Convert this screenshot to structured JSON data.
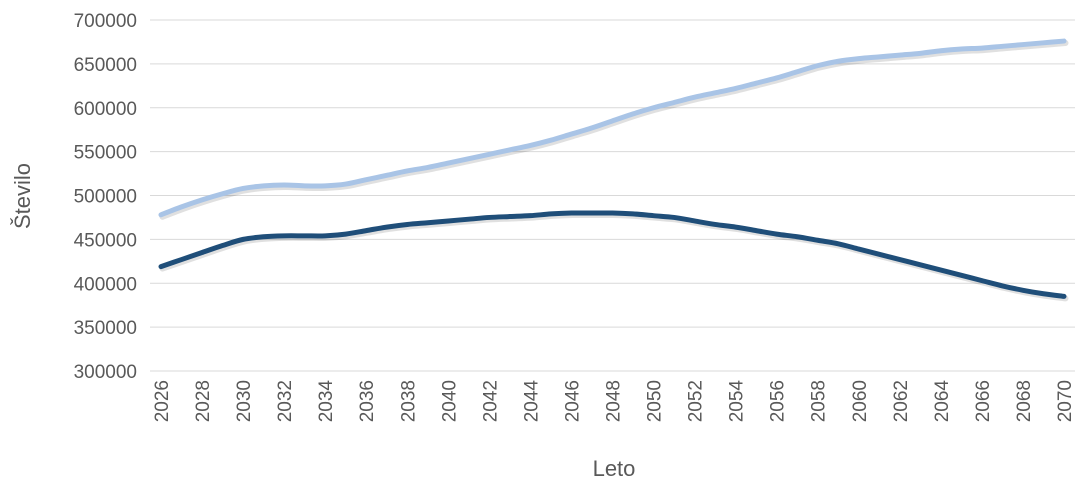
{
  "chart_data": {
    "type": "line",
    "title": "",
    "xlabel": "Leto",
    "ylabel": "Število",
    "x": [
      2026,
      2027,
      2028,
      2029,
      2030,
      2031,
      2032,
      2033,
      2034,
      2035,
      2036,
      2037,
      2038,
      2039,
      2040,
      2041,
      2042,
      2043,
      2044,
      2045,
      2046,
      2047,
      2048,
      2049,
      2050,
      2051,
      2052,
      2053,
      2054,
      2055,
      2056,
      2057,
      2058,
      2059,
      2060,
      2061,
      2062,
      2063,
      2064,
      2065,
      2066,
      2067,
      2068,
      2069,
      2070
    ],
    "x_tick_labels": [
      "2026",
      "2028",
      "2030",
      "2032",
      "2034",
      "2036",
      "2038",
      "2040",
      "2042",
      "2044",
      "2046",
      "2048",
      "2050",
      "2052",
      "2054",
      "2056",
      "2058",
      "2060",
      "2062",
      "2064",
      "2066",
      "2068",
      "2070"
    ],
    "y_tick_labels": [
      "300000",
      "350000",
      "400000",
      "450000",
      "500000",
      "550000",
      "600000",
      "650000",
      "700000"
    ],
    "ylim": [
      300000,
      700000
    ],
    "grid": true,
    "legend": "none",
    "series": [
      {
        "color": "#a9c4e6",
        "values": [
          478000,
          487000,
          495000,
          502000,
          508000,
          511000,
          512000,
          511000,
          511000,
          513000,
          518000,
          523000,
          528000,
          532000,
          537000,
          542000,
          547000,
          552000,
          557000,
          563000,
          570000,
          577000,
          585000,
          593000,
          600000,
          606000,
          612000,
          617000,
          622000,
          628000,
          634000,
          641000,
          648000,
          653000,
          656000,
          658000,
          660000,
          662000,
          665000,
          667000,
          668000,
          670000,
          672000,
          674000,
          676000
        ]
      },
      {
        "color": "#1f4e79",
        "values": [
          419000,
          427000,
          435000,
          443000,
          450000,
          453000,
          454000,
          454000,
          454000,
          456000,
          460000,
          464000,
          467000,
          469000,
          471000,
          473000,
          475000,
          476000,
          477000,
          479000,
          480000,
          480000,
          480000,
          479000,
          477000,
          475000,
          471000,
          467000,
          464000,
          460000,
          456000,
          453000,
          449000,
          445000,
          439000,
          433000,
          427000,
          421000,
          415000,
          409000,
          403000,
          397000,
          392000,
          388000,
          385000
        ]
      }
    ]
  }
}
